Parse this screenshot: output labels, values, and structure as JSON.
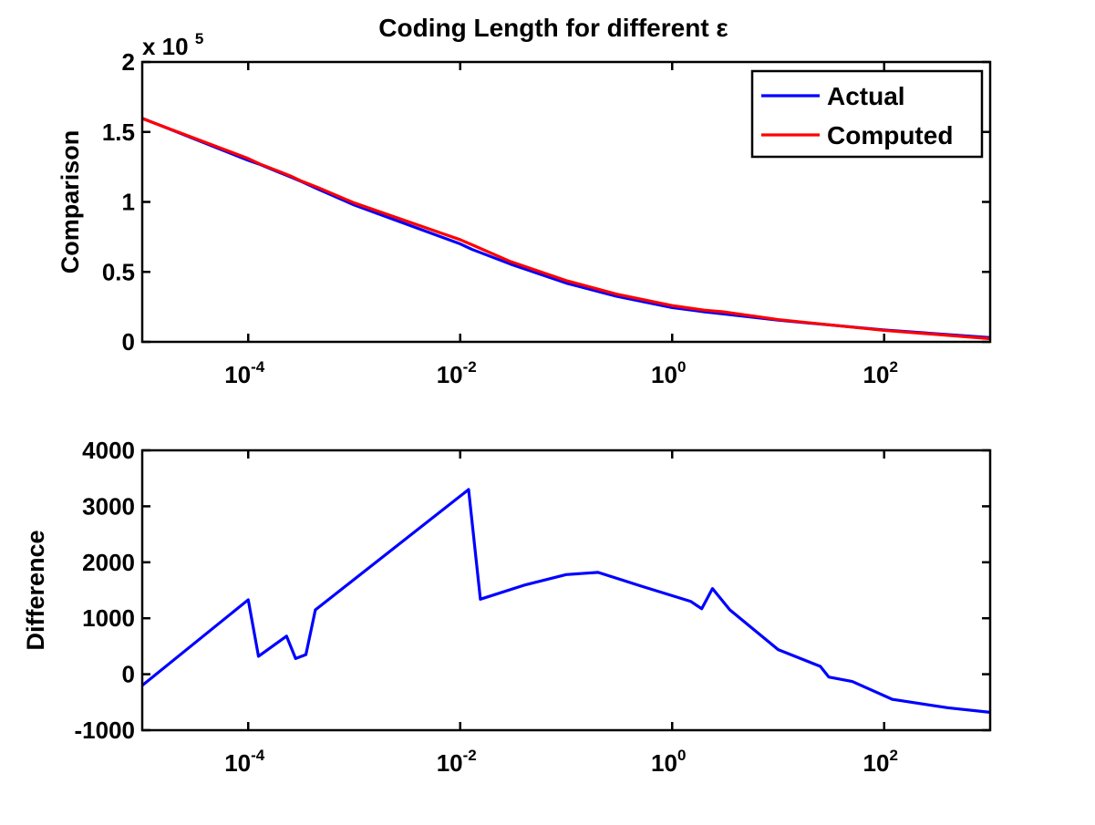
{
  "chart_data": [
    {
      "type": "line",
      "title": "Coding Length for different ε",
      "xlabel": "",
      "ylabel": "Comparison",
      "xscale": "log",
      "xlim": [
        1e-05,
        1000
      ],
      "ylim": [
        0,
        200000
      ],
      "y_multiplier_label": "x 10",
      "y_multiplier_exponent": "5",
      "xticks": [
        {
          "base": "10",
          "exp": "-4"
        },
        {
          "base": "10",
          "exp": "-2"
        },
        {
          "base": "10",
          "exp": "0"
        },
        {
          "base": "10",
          "exp": "2"
        }
      ],
      "yticks": [
        "0",
        "0.5",
        "1",
        "1.5",
        "2"
      ],
      "legend_position": "top-right",
      "series": [
        {
          "name": "Actual",
          "color": "#0000ff",
          "x": [
            1e-05,
            0.0001,
            0.00013,
            0.0002,
            0.00025,
            0.00032,
            0.00045,
            0.001,
            0.01,
            0.013,
            0.03,
            0.1,
            0.3,
            1,
            2,
            3,
            10,
            100,
            1000
          ],
          "y": [
            159800,
            129700,
            126700,
            120800,
            117900,
            114500,
            109300,
            97800,
            70000,
            66000,
            55500,
            42000,
            32500,
            24500,
            21500,
            20000,
            15500,
            8500,
            3000
          ]
        },
        {
          "name": "Computed",
          "color": "#ff0000",
          "x": [
            1e-05,
            0.0001,
            0.00013,
            0.0002,
            0.00025,
            0.00032,
            0.00045,
            0.001,
            0.01,
            0.013,
            0.03,
            0.1,
            0.3,
            1,
            2,
            3,
            10,
            100,
            1000
          ],
          "y": [
            159600,
            131000,
            127000,
            121500,
            118600,
            114800,
            110450,
            99300,
            73000,
            69300,
            57300,
            43800,
            34100,
            25900,
            22700,
            21500,
            15900,
            8200,
            2300
          ]
        }
      ]
    },
    {
      "type": "line",
      "title": "",
      "xlabel": "",
      "ylabel": "Difference",
      "xscale": "log",
      "xlim": [
        1e-05,
        1000
      ],
      "ylim": [
        -1000,
        4000
      ],
      "xticks": [
        {
          "base": "10",
          "exp": "-4"
        },
        {
          "base": "10",
          "exp": "-2"
        },
        {
          "base": "10",
          "exp": "0"
        },
        {
          "base": "10",
          "exp": "2"
        }
      ],
      "yticks": [
        "-1000",
        "0",
        "1000",
        "2000",
        "3000",
        "4000"
      ],
      "series": [
        {
          "name": "",
          "color": "#0000ff",
          "x": [
            1e-05,
            0.0001,
            0.000125,
            0.00023,
            0.00028,
            0.00035,
            0.00043,
            0.012,
            0.0155,
            0.04,
            0.1,
            0.2,
            0.5,
            1.5,
            1.9,
            2.4,
            3.5,
            10,
            25,
            30,
            50,
            120,
            400,
            1000
          ],
          "y": [
            -200,
            1330,
            320,
            680,
            280,
            350,
            1150,
            3300,
            1340,
            1590,
            1780,
            1820,
            1580,
            1300,
            1170,
            1530,
            1150,
            440,
            140,
            -50,
            -130,
            -450,
            -600,
            -680
          ]
        }
      ]
    }
  ]
}
